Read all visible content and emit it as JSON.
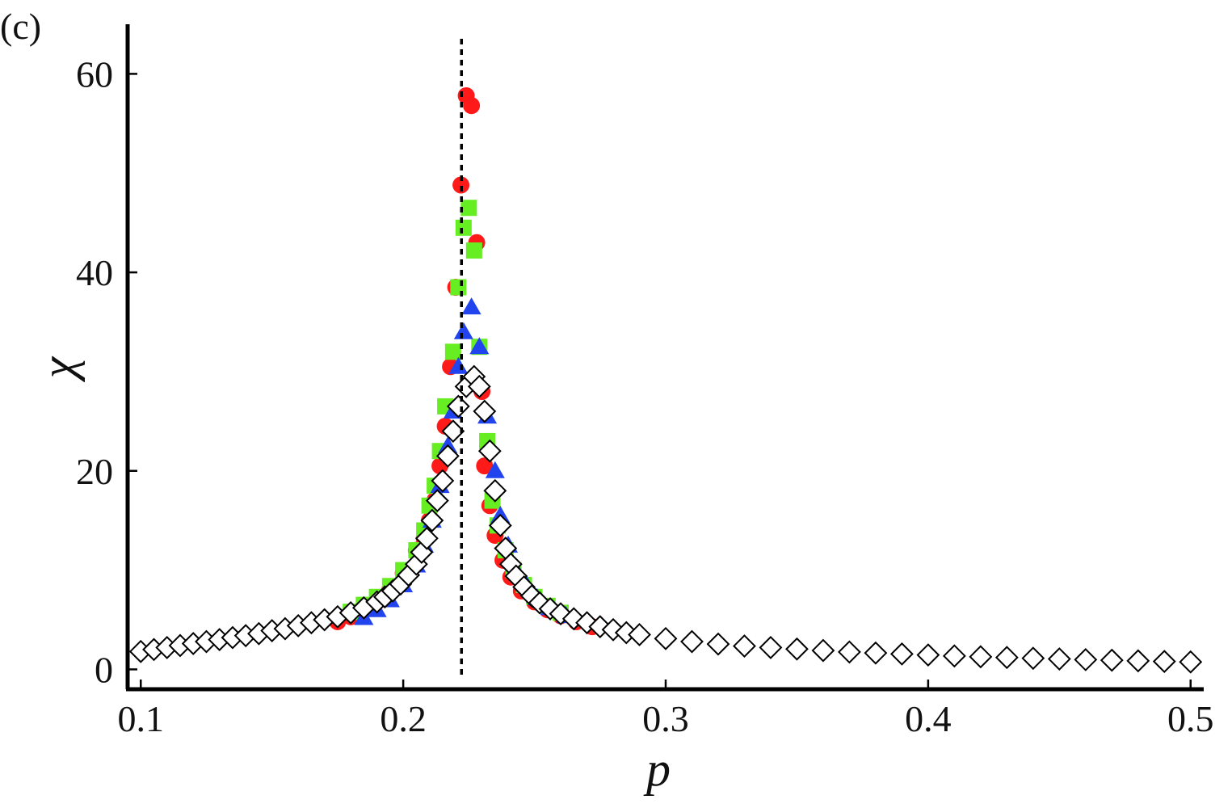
{
  "panel_label": "(c)",
  "chart_data": {
    "type": "scatter",
    "title": "",
    "xlabel": "p",
    "ylabel": "χ",
    "xlim": [
      0.095,
      0.505
    ],
    "ylim": [
      -2,
      65
    ],
    "x_ticks": [
      0.1,
      0.2,
      0.3,
      0.4,
      0.5
    ],
    "x_tick_labels": [
      "0.1",
      "0.2",
      "0.3",
      "0.4",
      "0.5"
    ],
    "y_ticks": [
      0,
      20,
      40,
      60
    ],
    "y_tick_labels": [
      "0",
      "20",
      "40",
      "60"
    ],
    "grid": false,
    "legend": "none",
    "reference_line": {
      "x": 0.2222,
      "style": "dashed",
      "color": "#000000"
    },
    "series": [
      {
        "marker": "circle",
        "color": "#ff1a1a",
        "points": [
          [
            0.175,
            4.8
          ],
          [
            0.18,
            5.3
          ],
          [
            0.185,
            6.0
          ],
          [
            0.19,
            6.9
          ],
          [
            0.195,
            8.1
          ],
          [
            0.2,
            9.7
          ],
          [
            0.205,
            12.0
          ],
          [
            0.208,
            13.2
          ],
          [
            0.21,
            15.0
          ],
          [
            0.212,
            17.0
          ],
          [
            0.214,
            20.5
          ],
          [
            0.216,
            24.5
          ],
          [
            0.218,
            30.5
          ],
          [
            0.22,
            38.5
          ],
          [
            0.222,
            48.8
          ],
          [
            0.224,
            57.8
          ],
          [
            0.226,
            56.8
          ],
          [
            0.228,
            43.0
          ],
          [
            0.23,
            28.0
          ],
          [
            0.231,
            20.5
          ],
          [
            0.233,
            16.5
          ],
          [
            0.235,
            13.5
          ],
          [
            0.238,
            11.0
          ],
          [
            0.241,
            9.3
          ],
          [
            0.245,
            7.9
          ],
          [
            0.25,
            6.8
          ],
          [
            0.255,
            6.0
          ],
          [
            0.26,
            5.4
          ],
          [
            0.266,
            4.8
          ],
          [
            0.272,
            4.3
          ]
        ]
      },
      {
        "marker": "square",
        "color": "#66ee22",
        "points": [
          [
            0.18,
            5.8
          ],
          [
            0.185,
            6.5
          ],
          [
            0.19,
            7.3
          ],
          [
            0.195,
            8.4
          ],
          [
            0.2,
            10.0
          ],
          [
            0.205,
            12.0
          ],
          [
            0.208,
            14.0
          ],
          [
            0.21,
            16.5
          ],
          [
            0.212,
            18.5
          ],
          [
            0.214,
            22.0
          ],
          [
            0.216,
            26.5
          ],
          [
            0.219,
            32.0
          ],
          [
            0.221,
            38.5
          ],
          [
            0.223,
            44.5
          ],
          [
            0.225,
            46.5
          ],
          [
            0.227,
            42.2
          ],
          [
            0.229,
            32.5
          ],
          [
            0.232,
            23.0
          ],
          [
            0.234,
            17.0
          ],
          [
            0.236,
            14.5
          ],
          [
            0.239,
            12.0
          ],
          [
            0.242,
            10.0
          ],
          [
            0.246,
            8.5
          ],
          [
            0.25,
            7.3
          ],
          [
            0.255,
            6.4
          ],
          [
            0.26,
            5.7
          ]
        ]
      },
      {
        "marker": "triangle",
        "color": "#2244ee",
        "points": [
          [
            0.185,
            5.2
          ],
          [
            0.19,
            6.0
          ],
          [
            0.195,
            7.0
          ],
          [
            0.2,
            8.5
          ],
          [
            0.205,
            10.5
          ],
          [
            0.208,
            12.5
          ],
          [
            0.211,
            15.0
          ],
          [
            0.214,
            18.5
          ],
          [
            0.217,
            22.5
          ],
          [
            0.219,
            26.0
          ],
          [
            0.221,
            30.5
          ],
          [
            0.223,
            34.0
          ],
          [
            0.226,
            36.5
          ],
          [
            0.229,
            32.5
          ],
          [
            0.232,
            25.5
          ],
          [
            0.235,
            20.0
          ],
          [
            0.237,
            15.5
          ],
          [
            0.24,
            12.5
          ],
          [
            0.243,
            10.0
          ],
          [
            0.247,
            8.5
          ],
          [
            0.251,
            7.2
          ],
          [
            0.256,
            6.2
          ],
          [
            0.262,
            5.4
          ]
        ]
      },
      {
        "marker": "diamond",
        "color": "#ffffff",
        "points": [
          [
            0.1,
            1.8
          ],
          [
            0.105,
            2.0
          ],
          [
            0.11,
            2.2
          ],
          [
            0.115,
            2.4
          ],
          [
            0.12,
            2.6
          ],
          [
            0.125,
            2.8
          ],
          [
            0.13,
            3.0
          ],
          [
            0.135,
            3.2
          ],
          [
            0.14,
            3.4
          ],
          [
            0.145,
            3.6
          ],
          [
            0.15,
            3.9
          ],
          [
            0.155,
            4.1
          ],
          [
            0.16,
            4.4
          ],
          [
            0.165,
            4.7
          ],
          [
            0.17,
            5.0
          ],
          [
            0.175,
            5.3
          ],
          [
            0.18,
            5.7
          ],
          [
            0.185,
            6.2
          ],
          [
            0.19,
            6.8
          ],
          [
            0.193,
            7.3
          ],
          [
            0.196,
            7.9
          ],
          [
            0.199,
            8.6
          ],
          [
            0.202,
            9.5
          ],
          [
            0.205,
            10.6
          ],
          [
            0.207,
            11.8
          ],
          [
            0.209,
            13.2
          ],
          [
            0.211,
            15.0
          ],
          [
            0.213,
            17.0
          ],
          [
            0.215,
            19.0
          ],
          [
            0.217,
            21.5
          ],
          [
            0.219,
            24.0
          ],
          [
            0.221,
            26.5
          ],
          [
            0.224,
            28.5
          ],
          [
            0.227,
            29.5
          ],
          [
            0.229,
            28.5
          ],
          [
            0.231,
            26.0
          ],
          [
            0.233,
            22.0
          ],
          [
            0.235,
            18.0
          ],
          [
            0.237,
            14.5
          ],
          [
            0.239,
            12.2
          ],
          [
            0.241,
            10.6
          ],
          [
            0.243,
            9.4
          ],
          [
            0.246,
            8.3
          ],
          [
            0.249,
            7.4
          ],
          [
            0.252,
            6.7
          ],
          [
            0.256,
            6.1
          ],
          [
            0.26,
            5.6
          ],
          [
            0.265,
            5.1
          ],
          [
            0.27,
            4.7
          ],
          [
            0.275,
            4.3
          ],
          [
            0.28,
            4.0
          ],
          [
            0.285,
            3.7
          ],
          [
            0.29,
            3.5
          ],
          [
            0.3,
            3.1
          ],
          [
            0.31,
            2.8
          ],
          [
            0.32,
            2.55
          ],
          [
            0.33,
            2.35
          ],
          [
            0.34,
            2.2
          ],
          [
            0.35,
            2.05
          ],
          [
            0.36,
            1.9
          ],
          [
            0.37,
            1.75
          ],
          [
            0.38,
            1.65
          ],
          [
            0.39,
            1.55
          ],
          [
            0.4,
            1.45
          ],
          [
            0.41,
            1.35
          ],
          [
            0.42,
            1.27
          ],
          [
            0.43,
            1.2
          ],
          [
            0.44,
            1.12
          ],
          [
            0.45,
            1.05
          ],
          [
            0.46,
            0.98
          ],
          [
            0.47,
            0.92
          ],
          [
            0.48,
            0.86
          ],
          [
            0.49,
            0.8
          ],
          [
            0.5,
            0.75
          ]
        ]
      }
    ]
  }
}
